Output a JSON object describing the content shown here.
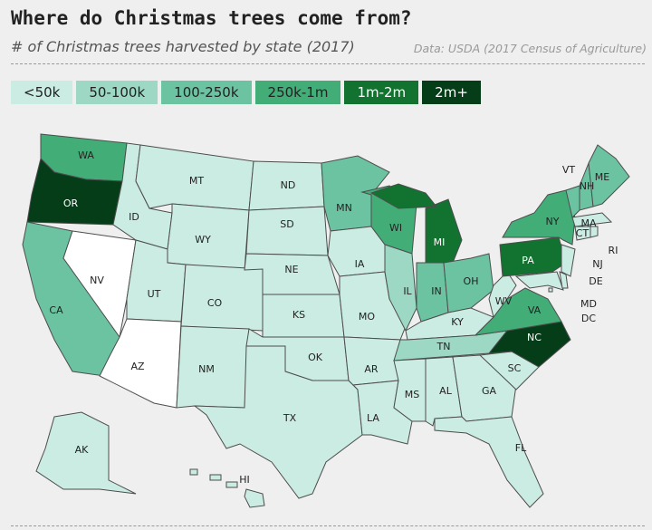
{
  "header": {
    "title": "Where do Christmas trees come from?",
    "subtitle": "# of Christmas trees harvested by state (2017)",
    "source": "Data: USDA (2017 Census of Agriculture)"
  },
  "legend": [
    {
      "label": "<50k",
      "color": "#cbece2"
    },
    {
      "label": "50-100k",
      "color": "#9cd8c4"
    },
    {
      "label": "100-250k",
      "color": "#6cc3a2"
    },
    {
      "label": "250k-1m",
      "color": "#43ad78"
    },
    {
      "label": "1m-2m",
      "color": "#12722f"
    },
    {
      "label": "2m+",
      "color": "#063d19"
    }
  ],
  "states": [
    {
      "label": "WA",
      "bin": "250k-1m"
    },
    {
      "label": "OR",
      "bin": "2m+"
    },
    {
      "label": "CA",
      "bin": "100-250k"
    },
    {
      "label": "NV",
      "bin": null
    },
    {
      "label": "ID",
      "bin": "<50k"
    },
    {
      "label": "MT",
      "bin": "<50k"
    },
    {
      "label": "WY",
      "bin": "<50k"
    },
    {
      "label": "UT",
      "bin": "<50k"
    },
    {
      "label": "AZ",
      "bin": null
    },
    {
      "label": "CO",
      "bin": "<50k"
    },
    {
      "label": "NM",
      "bin": "<50k"
    },
    {
      "label": "ND",
      "bin": "<50k"
    },
    {
      "label": "SD",
      "bin": "<50k"
    },
    {
      "label": "NE",
      "bin": "<50k"
    },
    {
      "label": "KS",
      "bin": "<50k"
    },
    {
      "label": "OK",
      "bin": "<50k"
    },
    {
      "label": "TX",
      "bin": "<50k"
    },
    {
      "label": "MN",
      "bin": "100-250k"
    },
    {
      "label": "IA",
      "bin": "<50k"
    },
    {
      "label": "MO",
      "bin": "<50k"
    },
    {
      "label": "AR",
      "bin": "<50k"
    },
    {
      "label": "LA",
      "bin": "<50k"
    },
    {
      "label": "WI",
      "bin": "250k-1m"
    },
    {
      "label": "IL",
      "bin": "50-100k"
    },
    {
      "label": "MI",
      "bin": "1m-2m"
    },
    {
      "label": "IN",
      "bin": "100-250k"
    },
    {
      "label": "OH",
      "bin": "100-250k"
    },
    {
      "label": "KY",
      "bin": "<50k"
    },
    {
      "label": "TN",
      "bin": "50-100k"
    },
    {
      "label": "MS",
      "bin": "<50k"
    },
    {
      "label": "AL",
      "bin": "<50k"
    },
    {
      "label": "GA",
      "bin": "<50k"
    },
    {
      "label": "FL",
      "bin": "<50k"
    },
    {
      "label": "SC",
      "bin": "<50k"
    },
    {
      "label": "NC",
      "bin": "2m+"
    },
    {
      "label": "VA",
      "bin": "250k-1m"
    },
    {
      "label": "WV",
      "bin": "<50k"
    },
    {
      "label": "PA",
      "bin": "1m-2m"
    },
    {
      "label": "NY",
      "bin": "250k-1m"
    },
    {
      "label": "NJ",
      "bin": "<50k"
    },
    {
      "label": "MD",
      "bin": "<50k"
    },
    {
      "label": "DE",
      "bin": "<50k"
    },
    {
      "label": "DC",
      "bin": "<50k"
    },
    {
      "label": "VT",
      "bin": "100-250k"
    },
    {
      "label": "NH",
      "bin": "100-250k"
    },
    {
      "label": "ME",
      "bin": "100-250k"
    },
    {
      "label": "MA",
      "bin": "<50k"
    },
    {
      "label": "CT",
      "bin": "<50k"
    },
    {
      "label": "RI",
      "bin": "<50k"
    },
    {
      "label": "AK",
      "bin": "<50k"
    },
    {
      "label": "HI",
      "bin": "<50k"
    }
  ]
}
